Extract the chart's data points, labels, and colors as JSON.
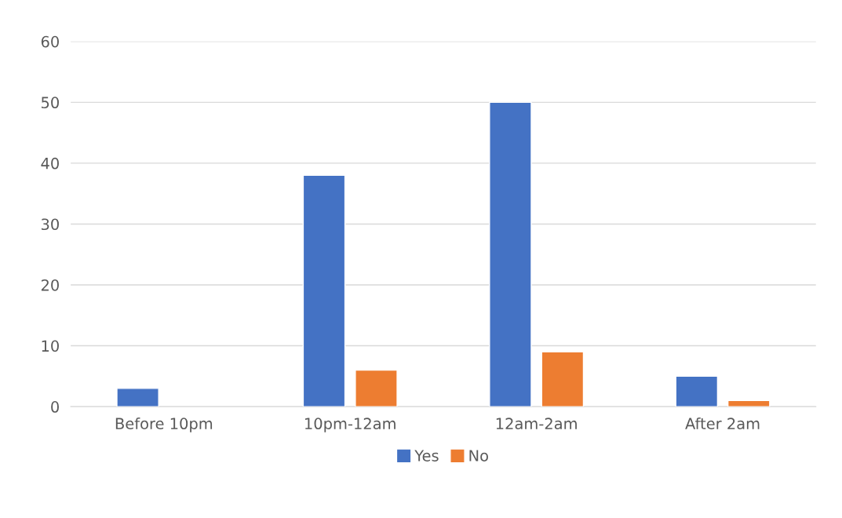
{
  "chart_data": {
    "type": "bar",
    "categories": [
      "Before 10pm",
      "10pm-12am",
      "12am-2am",
      "After 2am"
    ],
    "series": [
      {
        "name": "Yes",
        "color": "#4472c4",
        "values": [
          3,
          38,
          50,
          5
        ]
      },
      {
        "name": "No",
        "color": "#ed7d31",
        "values": [
          null,
          6,
          9,
          1
        ]
      }
    ],
    "ylim": [
      0,
      60
    ],
    "yticks": [
      0,
      10,
      20,
      30,
      40,
      50,
      60
    ],
    "grid": "y",
    "legend": "bottom"
  }
}
